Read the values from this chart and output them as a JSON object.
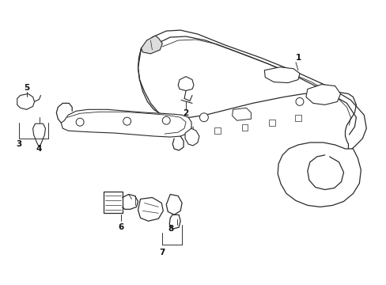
{
  "background_color": "#ffffff",
  "line_color": "#2a2a2a",
  "label_color": "#111111",
  "figsize": [
    4.89,
    3.6
  ],
  "dpi": 100
}
